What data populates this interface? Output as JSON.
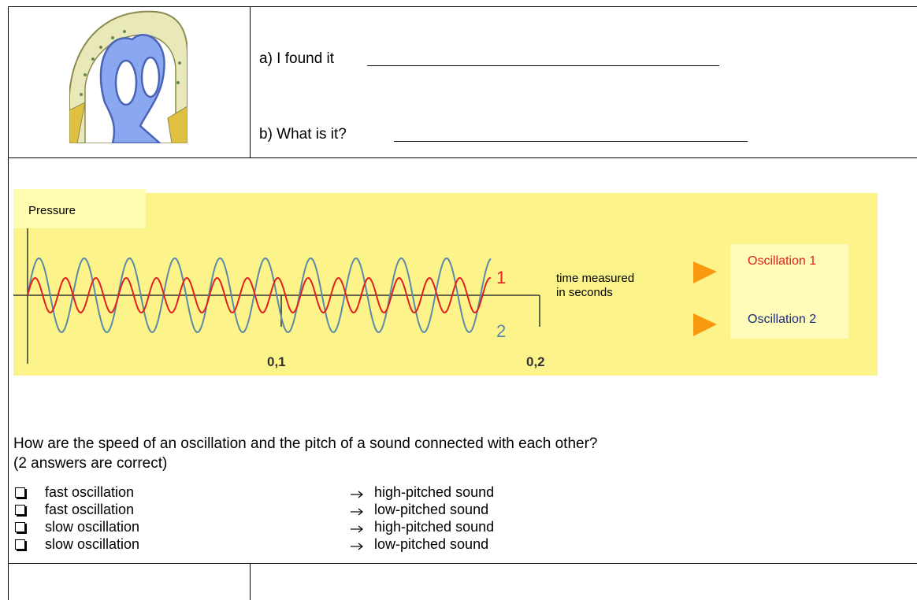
{
  "header": {
    "line_a": "a) I found it",
    "line_b": "b) What is it?"
  },
  "figure": {
    "y_label": "Pressure",
    "wave_1_label": "1",
    "wave_2_label": "2",
    "x_label": "time measured in seconds",
    "x_ticks": [
      "0,1",
      "0,2"
    ],
    "legend": [
      "Oscillation 1",
      "Oscillation 2"
    ]
  },
  "question": {
    "text": "How are the speed of an oscillation and the pitch of a sound connected with each other?",
    "note": "(2 answers are correct)",
    "options": [
      {
        "speed": "fast oscillation",
        "pitch": "high-pitched sound"
      },
      {
        "speed": "fast oscillation",
        "pitch": "low-pitched sound"
      },
      {
        "speed": "slow oscillation",
        "pitch": "high-pitched sound"
      },
      {
        "speed": "slow oscillation",
        "pitch": "low-pitched sound"
      }
    ]
  }
}
